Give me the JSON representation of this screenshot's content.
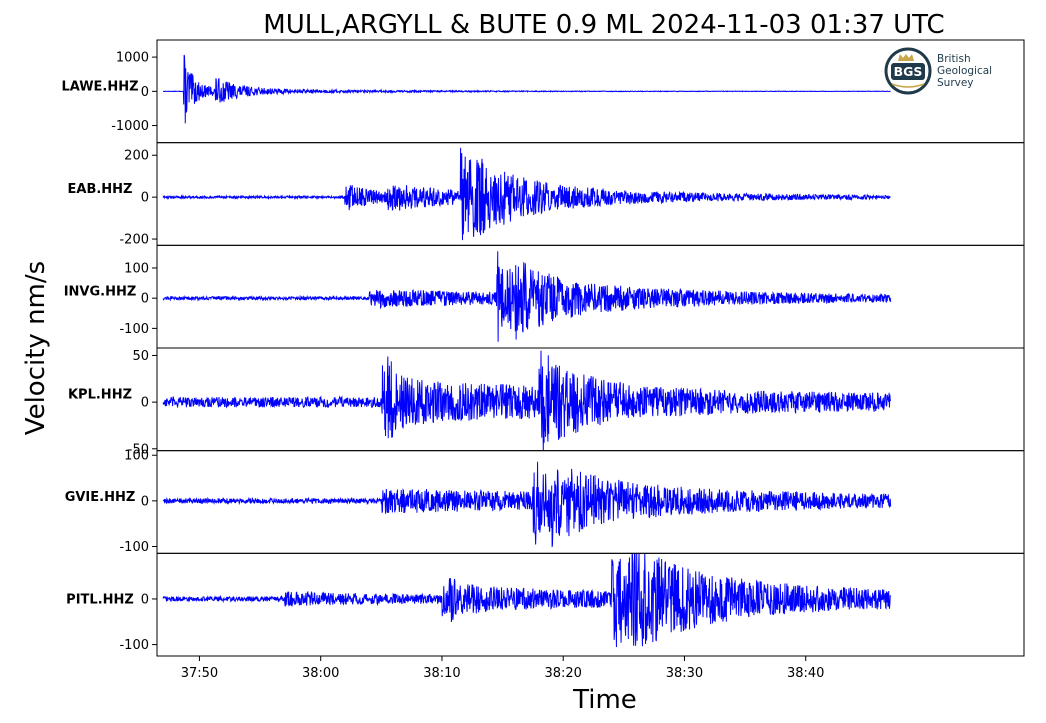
{
  "title": "MULL,ARGYLL & BUTE 0.9 ML   2024-11-03 01:37 UTC",
  "logo": {
    "abbr": "BGS",
    "lines": [
      "British",
      "Geological",
      "Survey"
    ],
    "colors": {
      "ring": "#1f3a4a",
      "accent": "#c8a64b",
      "text": "#1f3a4a"
    }
  },
  "chart_data": {
    "type": "line",
    "xlabel": "Time",
    "ylabel": "Velocity nm/s",
    "x_ticks": [
      "37:50",
      "38:00",
      "38:10",
      "38:20",
      "38:30",
      "38:40"
    ],
    "x_tick_seconds": [
      50,
      60,
      70,
      80,
      90,
      100
    ],
    "x_range_seconds": [
      46.5,
      118.0
    ],
    "trace_span_seconds": [
      47.0,
      107.0
    ],
    "line_color": "#0000ff",
    "panels": [
      {
        "station": "LAWE.HHZ",
        "ylim": [
          -1500,
          1500
        ],
        "y_ticks": [
          1000,
          0,
          -1000
        ],
        "y_tick_labels": [
          "1000",
          "0",
          "-1000"
        ],
        "noise": 6,
        "events": [
          {
            "t": 48.7,
            "amp": 1350,
            "decay": 0.5
          },
          {
            "t": 49.0,
            "amp": 250,
            "decay": 3.0
          },
          {
            "t": 51.3,
            "amp": 380,
            "decay": 1.2
          },
          {
            "t": 52.0,
            "amp": 80,
            "decay": 12.0
          }
        ]
      },
      {
        "station": "EAB.HHZ",
        "ylim": [
          -230,
          260
        ],
        "y_ticks": [
          200,
          0,
          -200
        ],
        "y_tick_labels": [
          "200",
          "0",
          "-200"
        ],
        "noise": 6,
        "events": [
          {
            "t": 62.0,
            "amp": 70,
            "decay": 3.0
          },
          {
            "t": 65.5,
            "amp": 55,
            "decay": 9.0
          },
          {
            "t": 71.5,
            "amp": 225,
            "decay": 2.8
          },
          {
            "t": 72.5,
            "amp": 70,
            "decay": 12.0
          }
        ]
      },
      {
        "station": "INVG.HHZ",
        "ylim": [
          -165,
          175
        ],
        "y_ticks": [
          100,
          0,
          -100
        ],
        "y_tick_labels": [
          "100",
          "0",
          "-100"
        ],
        "noise": 6,
        "events": [
          {
            "t": 64.0,
            "amp": 30,
            "decay": 18.0
          },
          {
            "t": 74.5,
            "amp": 155,
            "decay": 2.6
          },
          {
            "t": 76.0,
            "amp": 50,
            "decay": 14.0
          }
        ]
      },
      {
        "station": "KPL.HHZ",
        "ylim": [
          -52,
          58
        ],
        "y_ticks": [
          50,
          0,
          -50
        ],
        "y_tick_labels": [
          "50",
          "0",
          "-50"
        ],
        "noise": 6,
        "events": [
          {
            "t": 65.0,
            "amp": 50,
            "decay": 1.0
          },
          {
            "t": 65.5,
            "amp": 20,
            "decay": 30.0
          },
          {
            "t": 78.0,
            "amp": 45,
            "decay": 3.5
          }
        ]
      },
      {
        "station": "GVIE.HHZ",
        "ylim": [
          -115,
          110
        ],
        "y_ticks": [
          100,
          0,
          -100
        ],
        "y_tick_labels": [
          "100",
          "0",
          "-100"
        ],
        "noise": 6,
        "events": [
          {
            "t": 65.0,
            "amp": 25,
            "decay": 30.0
          },
          {
            "t": 77.5,
            "amp": 95,
            "decay": 2.8
          },
          {
            "t": 79.0,
            "amp": 35,
            "decay": 14.0
          }
        ]
      },
      {
        "station": "PITL.HHZ",
        "ylim": [
          -125,
          100
        ],
        "y_ticks": [
          0,
          -100
        ],
        "y_tick_labels": [
          "0",
          "-100"
        ],
        "noise": 6,
        "events": [
          {
            "t": 57.0,
            "amp": 12,
            "decay": 14.0
          },
          {
            "t": 70.0,
            "amp": 42,
            "decay": 1.5
          },
          {
            "t": 70.5,
            "amp": 20,
            "decay": 30.0
          },
          {
            "t": 84.0,
            "amp": 110,
            "decay": 4.5
          },
          {
            "t": 85.5,
            "amp": 40,
            "decay": 16.0
          }
        ]
      }
    ]
  }
}
